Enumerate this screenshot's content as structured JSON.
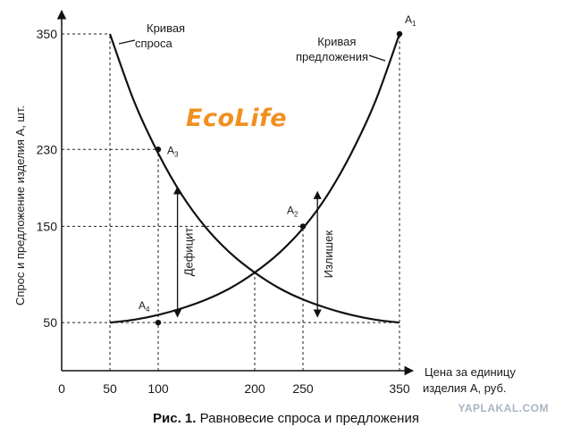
{
  "chart_data": {
    "type": "line",
    "title": "",
    "xlabel": "Цена за единицу\nизделия А, руб.",
    "ylabel": "Спрос и предложение изделия А, шт.",
    "xlim": [
      0,
      350
    ],
    "ylim": [
      0,
      350
    ],
    "x_ticks": [
      0,
      50,
      100,
      200,
      250,
      350
    ],
    "y_ticks": [
      50,
      150,
      230,
      350
    ],
    "series": [
      {
        "name": "Кривая спроса",
        "x": [
          50,
          75,
          100,
          125,
          150,
          175,
          200,
          225,
          250,
          275,
          300,
          325,
          350
        ],
        "y": [
          350,
          280,
          226,
          182,
          148,
          122,
          102,
          86,
          74,
          65,
          58,
          53,
          50
        ]
      },
      {
        "name": "Кривая предложения",
        "x": [
          50,
          75,
          100,
          125,
          150,
          175,
          200,
          225,
          250,
          275,
          300,
          325,
          350
        ],
        "y": [
          50,
          53,
          58,
          65,
          74,
          86,
          102,
          122,
          148,
          182,
          226,
          280,
          350
        ]
      }
    ],
    "points": [
      {
        "label": "A",
        "sub": "1",
        "x": 350,
        "y": 350
      },
      {
        "label": "A",
        "sub": "2",
        "x": 250,
        "y": 150
      },
      {
        "label": "A",
        "sub": "3",
        "x": 100,
        "y": 230
      },
      {
        "label": "A",
        "sub": "4",
        "x": 100,
        "y": 50
      }
    ],
    "annotations": [
      {
        "text": "Дефицит",
        "x": 120,
        "y_from": 56,
        "y_to": 191
      },
      {
        "text": "Излишек",
        "x": 265,
        "y_from": 56,
        "y_to": 186
      }
    ],
    "grid": false,
    "legend": "none"
  },
  "figure": {
    "caption_bold": "Рис. 1.",
    "caption_rest": " Равновесие спроса и предложения",
    "logo": "EcoLife",
    "watermark": "YAPLAKAL.COM"
  }
}
